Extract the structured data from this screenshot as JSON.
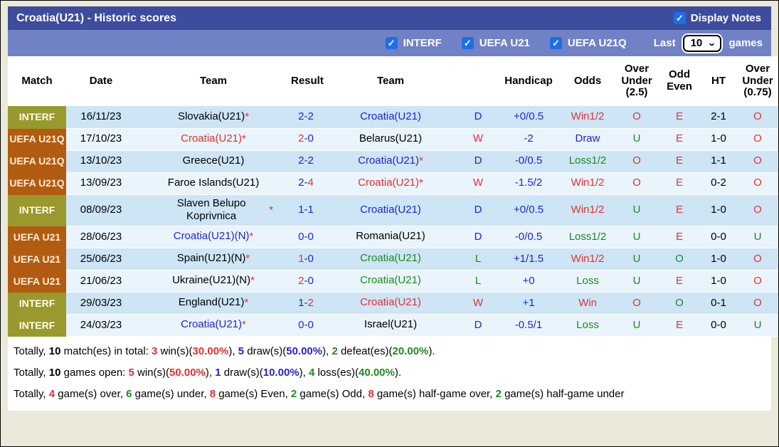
{
  "window": {
    "title": "Croatia(U21) - Historic scores",
    "display_notes_label": "Display Notes"
  },
  "filter": {
    "checkboxes": [
      {
        "label": "INTERF"
      },
      {
        "label": "UEFA U21"
      },
      {
        "label": "UEFA U21Q"
      }
    ],
    "last_label": "Last",
    "last_value": "10",
    "games_label": "games"
  },
  "table": {
    "headers": [
      "Match",
      "Date",
      "Team",
      "Result",
      "Team",
      "",
      "Handicap",
      "Odds",
      "Over\nUnder\n(2.5)",
      "Odd\nEven",
      "HT",
      "Over\nUnder\n(0.75)"
    ],
    "rows": [
      {
        "badge": {
          "text": "INTERF",
          "type": "interf"
        },
        "date": "16/11/23",
        "home": {
          "name": "Slovakia(U21)",
          "star": true,
          "color": "black"
        },
        "result": {
          "h": "2",
          "a": "2",
          "hc": "blue",
          "ac": "blue"
        },
        "away": {
          "name": "Croatia(U21)",
          "star": false,
          "color": "blue"
        },
        "wdl": {
          "text": "D",
          "color": "blue"
        },
        "handicap": {
          "text": "+0/0.5",
          "color": "blue"
        },
        "odds": {
          "text": "Win1/2",
          "color": "red"
        },
        "ou25": {
          "text": "O",
          "color": "red"
        },
        "oddeven": {
          "text": "E",
          "color": "red"
        },
        "ht": {
          "text": "2-1",
          "color": "black"
        },
        "ou075": {
          "text": "O",
          "color": "red"
        }
      },
      {
        "badge": {
          "text": "UEFA U21Q",
          "type": "uefa"
        },
        "date": "17/10/23",
        "home": {
          "name": "Croatia(U21)",
          "star": true,
          "color": "red"
        },
        "result": {
          "h": "2",
          "a": "0",
          "hc": "red",
          "ac": "blue"
        },
        "away": {
          "name": "Belarus(U21)",
          "star": false,
          "color": "black"
        },
        "wdl": {
          "text": "W",
          "color": "red"
        },
        "handicap": {
          "text": "-2",
          "color": "blue"
        },
        "odds": {
          "text": "Draw",
          "color": "blue"
        },
        "ou25": {
          "text": "U",
          "color": "green"
        },
        "oddeven": {
          "text": "E",
          "color": "red"
        },
        "ht": {
          "text": "1-0",
          "color": "black"
        },
        "ou075": {
          "text": "O",
          "color": "red"
        }
      },
      {
        "badge": {
          "text": "UEFA U21Q",
          "type": "uefa"
        },
        "date": "13/10/23",
        "home": {
          "name": "Greece(U21)",
          "star": false,
          "color": "black"
        },
        "result": {
          "h": "2",
          "a": "2",
          "hc": "blue",
          "ac": "blue"
        },
        "away": {
          "name": "Croatia(U21)",
          "star": true,
          "color": "blue"
        },
        "wdl": {
          "text": "D",
          "color": "blue"
        },
        "handicap": {
          "text": "-0/0.5",
          "color": "blue"
        },
        "odds": {
          "text": "Loss1/2",
          "color": "green"
        },
        "ou25": {
          "text": "O",
          "color": "red"
        },
        "oddeven": {
          "text": "E",
          "color": "red"
        },
        "ht": {
          "text": "1-1",
          "color": "black"
        },
        "ou075": {
          "text": "O",
          "color": "red"
        }
      },
      {
        "badge": {
          "text": "UEFA U21Q",
          "type": "uefa"
        },
        "date": "13/09/23",
        "home": {
          "name": "Faroe Islands(U21)",
          "star": false,
          "color": "black"
        },
        "result": {
          "h": "2",
          "a": "4",
          "hc": "blue",
          "ac": "red"
        },
        "away": {
          "name": "Croatia(U21)",
          "star": true,
          "color": "red"
        },
        "wdl": {
          "text": "W",
          "color": "red"
        },
        "handicap": {
          "text": "-1.5/2",
          "color": "blue"
        },
        "odds": {
          "text": "Win1/2",
          "color": "red"
        },
        "ou25": {
          "text": "O",
          "color": "red"
        },
        "oddeven": {
          "text": "E",
          "color": "red"
        },
        "ht": {
          "text": "0-2",
          "color": "black"
        },
        "ou075": {
          "text": "O",
          "color": "red"
        }
      },
      {
        "badge": {
          "text": "INTERF",
          "type": "interf"
        },
        "date": "08/09/23",
        "home": {
          "name": "Slaven Belupo Koprivnica",
          "star": true,
          "color": "black"
        },
        "result": {
          "h": "1",
          "a": "1",
          "hc": "blue",
          "ac": "blue"
        },
        "away": {
          "name": "Croatia(U21)",
          "star": false,
          "color": "blue"
        },
        "wdl": {
          "text": "D",
          "color": "blue"
        },
        "handicap": {
          "text": "+0/0.5",
          "color": "blue"
        },
        "odds": {
          "text": "Win1/2",
          "color": "red"
        },
        "ou25": {
          "text": "U",
          "color": "green"
        },
        "oddeven": {
          "text": "E",
          "color": "red"
        },
        "ht": {
          "text": "1-0",
          "color": "black"
        },
        "ou075": {
          "text": "O",
          "color": "red"
        }
      },
      {
        "badge": {
          "text": "UEFA U21",
          "type": "uefa"
        },
        "date": "28/06/23",
        "home": {
          "name": "Croatia(U21)(N)",
          "star": true,
          "color": "blue"
        },
        "result": {
          "h": "0",
          "a": "0",
          "hc": "blue",
          "ac": "blue"
        },
        "away": {
          "name": "Romania(U21)",
          "star": false,
          "color": "black"
        },
        "wdl": {
          "text": "D",
          "color": "blue"
        },
        "handicap": {
          "text": "-0/0.5",
          "color": "blue"
        },
        "odds": {
          "text": "Loss1/2",
          "color": "green"
        },
        "ou25": {
          "text": "U",
          "color": "green"
        },
        "oddeven": {
          "text": "E",
          "color": "red"
        },
        "ht": {
          "text": "0-0",
          "color": "black"
        },
        "ou075": {
          "text": "U",
          "color": "green"
        }
      },
      {
        "badge": {
          "text": "UEFA U21",
          "type": "uefa"
        },
        "date": "25/06/23",
        "home": {
          "name": "Spain(U21)(N)",
          "star": true,
          "color": "black"
        },
        "result": {
          "h": "1",
          "a": "0",
          "hc": "red",
          "ac": "blue"
        },
        "away": {
          "name": "Croatia(U21)",
          "star": false,
          "color": "green"
        },
        "wdl": {
          "text": "L",
          "color": "green"
        },
        "handicap": {
          "text": "+1/1.5",
          "color": "blue"
        },
        "odds": {
          "text": "Win1/2",
          "color": "red"
        },
        "ou25": {
          "text": "U",
          "color": "green"
        },
        "oddeven": {
          "text": "O",
          "color": "green"
        },
        "ht": {
          "text": "1-0",
          "color": "black"
        },
        "ou075": {
          "text": "O",
          "color": "red"
        }
      },
      {
        "badge": {
          "text": "UEFA U21",
          "type": "uefa"
        },
        "date": "21/06/23",
        "home": {
          "name": "Ukraine(U21)(N)",
          "star": true,
          "color": "black"
        },
        "result": {
          "h": "2",
          "a": "0",
          "hc": "red",
          "ac": "blue"
        },
        "away": {
          "name": "Croatia(U21)",
          "star": false,
          "color": "green"
        },
        "wdl": {
          "text": "L",
          "color": "green"
        },
        "handicap": {
          "text": "+0",
          "color": "blue"
        },
        "odds": {
          "text": "Loss",
          "color": "green"
        },
        "ou25": {
          "text": "U",
          "color": "green"
        },
        "oddeven": {
          "text": "E",
          "color": "red"
        },
        "ht": {
          "text": "1-0",
          "color": "black"
        },
        "ou075": {
          "text": "O",
          "color": "red"
        }
      },
      {
        "badge": {
          "text": "INTERF",
          "type": "interf"
        },
        "date": "29/03/23",
        "home": {
          "name": "England(U21)",
          "star": true,
          "color": "black"
        },
        "result": {
          "h": "1",
          "a": "2",
          "hc": "blue",
          "ac": "red"
        },
        "away": {
          "name": "Croatia(U21)",
          "star": false,
          "color": "red"
        },
        "wdl": {
          "text": "W",
          "color": "red"
        },
        "handicap": {
          "text": "+1",
          "color": "blue"
        },
        "odds": {
          "text": "Win",
          "color": "red"
        },
        "ou25": {
          "text": "O",
          "color": "red"
        },
        "oddeven": {
          "text": "O",
          "color": "green"
        },
        "ht": {
          "text": "0-1",
          "color": "black"
        },
        "ou075": {
          "text": "O",
          "color": "red"
        }
      },
      {
        "badge": {
          "text": "INTERF",
          "type": "interf"
        },
        "date": "24/03/23",
        "home": {
          "name": "Croatia(U21)",
          "star": true,
          "color": "blue"
        },
        "result": {
          "h": "0",
          "a": "0",
          "hc": "blue",
          "ac": "blue"
        },
        "away": {
          "name": "Israel(U21)",
          "star": false,
          "color": "black"
        },
        "wdl": {
          "text": "D",
          "color": "blue"
        },
        "handicap": {
          "text": "-0.5/1",
          "color": "blue"
        },
        "odds": {
          "text": "Loss",
          "color": "green"
        },
        "ou25": {
          "text": "U",
          "color": "green"
        },
        "oddeven": {
          "text": "E",
          "color": "red"
        },
        "ht": {
          "text": "0-0",
          "color": "black"
        },
        "ou075": {
          "text": "U",
          "color": "green"
        }
      }
    ]
  },
  "summary": {
    "lines": [
      [
        {
          "t": "Totally, ",
          "c": "black",
          "b": false
        },
        {
          "t": "10",
          "c": "black",
          "b": true
        },
        {
          "t": " match(es) in total: ",
          "c": "black",
          "b": false
        },
        {
          "t": "3",
          "c": "red",
          "b": true
        },
        {
          "t": " win(s)(",
          "c": "black",
          "b": false
        },
        {
          "t": "30.00%",
          "c": "red",
          "b": true
        },
        {
          "t": "), ",
          "c": "black",
          "b": false
        },
        {
          "t": "5",
          "c": "blue",
          "b": true
        },
        {
          "t": " draw(s)(",
          "c": "black",
          "b": false
        },
        {
          "t": "50.00%",
          "c": "blue",
          "b": true
        },
        {
          "t": "), ",
          "c": "black",
          "b": false
        },
        {
          "t": "2",
          "c": "green",
          "b": true
        },
        {
          "t": " defeat(es)(",
          "c": "black",
          "b": false
        },
        {
          "t": "20.00%",
          "c": "green",
          "b": true
        },
        {
          "t": ").",
          "c": "black",
          "b": false
        }
      ],
      [
        {
          "t": "Totally, ",
          "c": "black",
          "b": false
        },
        {
          "t": "10",
          "c": "black",
          "b": true
        },
        {
          "t": " games open: ",
          "c": "black",
          "b": false
        },
        {
          "t": "5",
          "c": "red",
          "b": true
        },
        {
          "t": " win(s)(",
          "c": "black",
          "b": false
        },
        {
          "t": "50.00%",
          "c": "red",
          "b": true
        },
        {
          "t": "), ",
          "c": "black",
          "b": false
        },
        {
          "t": "1",
          "c": "blue",
          "b": true
        },
        {
          "t": " draw(s)(",
          "c": "black",
          "b": false
        },
        {
          "t": "10.00%",
          "c": "blue",
          "b": true
        },
        {
          "t": "), ",
          "c": "black",
          "b": false
        },
        {
          "t": "4",
          "c": "green",
          "b": true
        },
        {
          "t": " loss(es)(",
          "c": "black",
          "b": false
        },
        {
          "t": "40.00%",
          "c": "green",
          "b": true
        },
        {
          "t": ").",
          "c": "black",
          "b": false
        }
      ],
      [
        {
          "t": "Totally, ",
          "c": "black",
          "b": false
        },
        {
          "t": "4",
          "c": "red",
          "b": true
        },
        {
          "t": " game(s) over, ",
          "c": "black",
          "b": false
        },
        {
          "t": "6",
          "c": "green",
          "b": true
        },
        {
          "t": " game(s) under, ",
          "c": "black",
          "b": false
        },
        {
          "t": "8",
          "c": "red",
          "b": true
        },
        {
          "t": " game(s) Even, ",
          "c": "black",
          "b": false
        },
        {
          "t": "2",
          "c": "green",
          "b": true
        },
        {
          "t": " game(s) Odd, ",
          "c": "black",
          "b": false
        },
        {
          "t": "8",
          "c": "red",
          "b": true
        },
        {
          "t": " game(s) half-game over, ",
          "c": "black",
          "b": false
        },
        {
          "t": "2",
          "c": "green",
          "b": true
        },
        {
          "t": " game(s) half-game under",
          "c": "black",
          "b": false
        }
      ]
    ]
  }
}
